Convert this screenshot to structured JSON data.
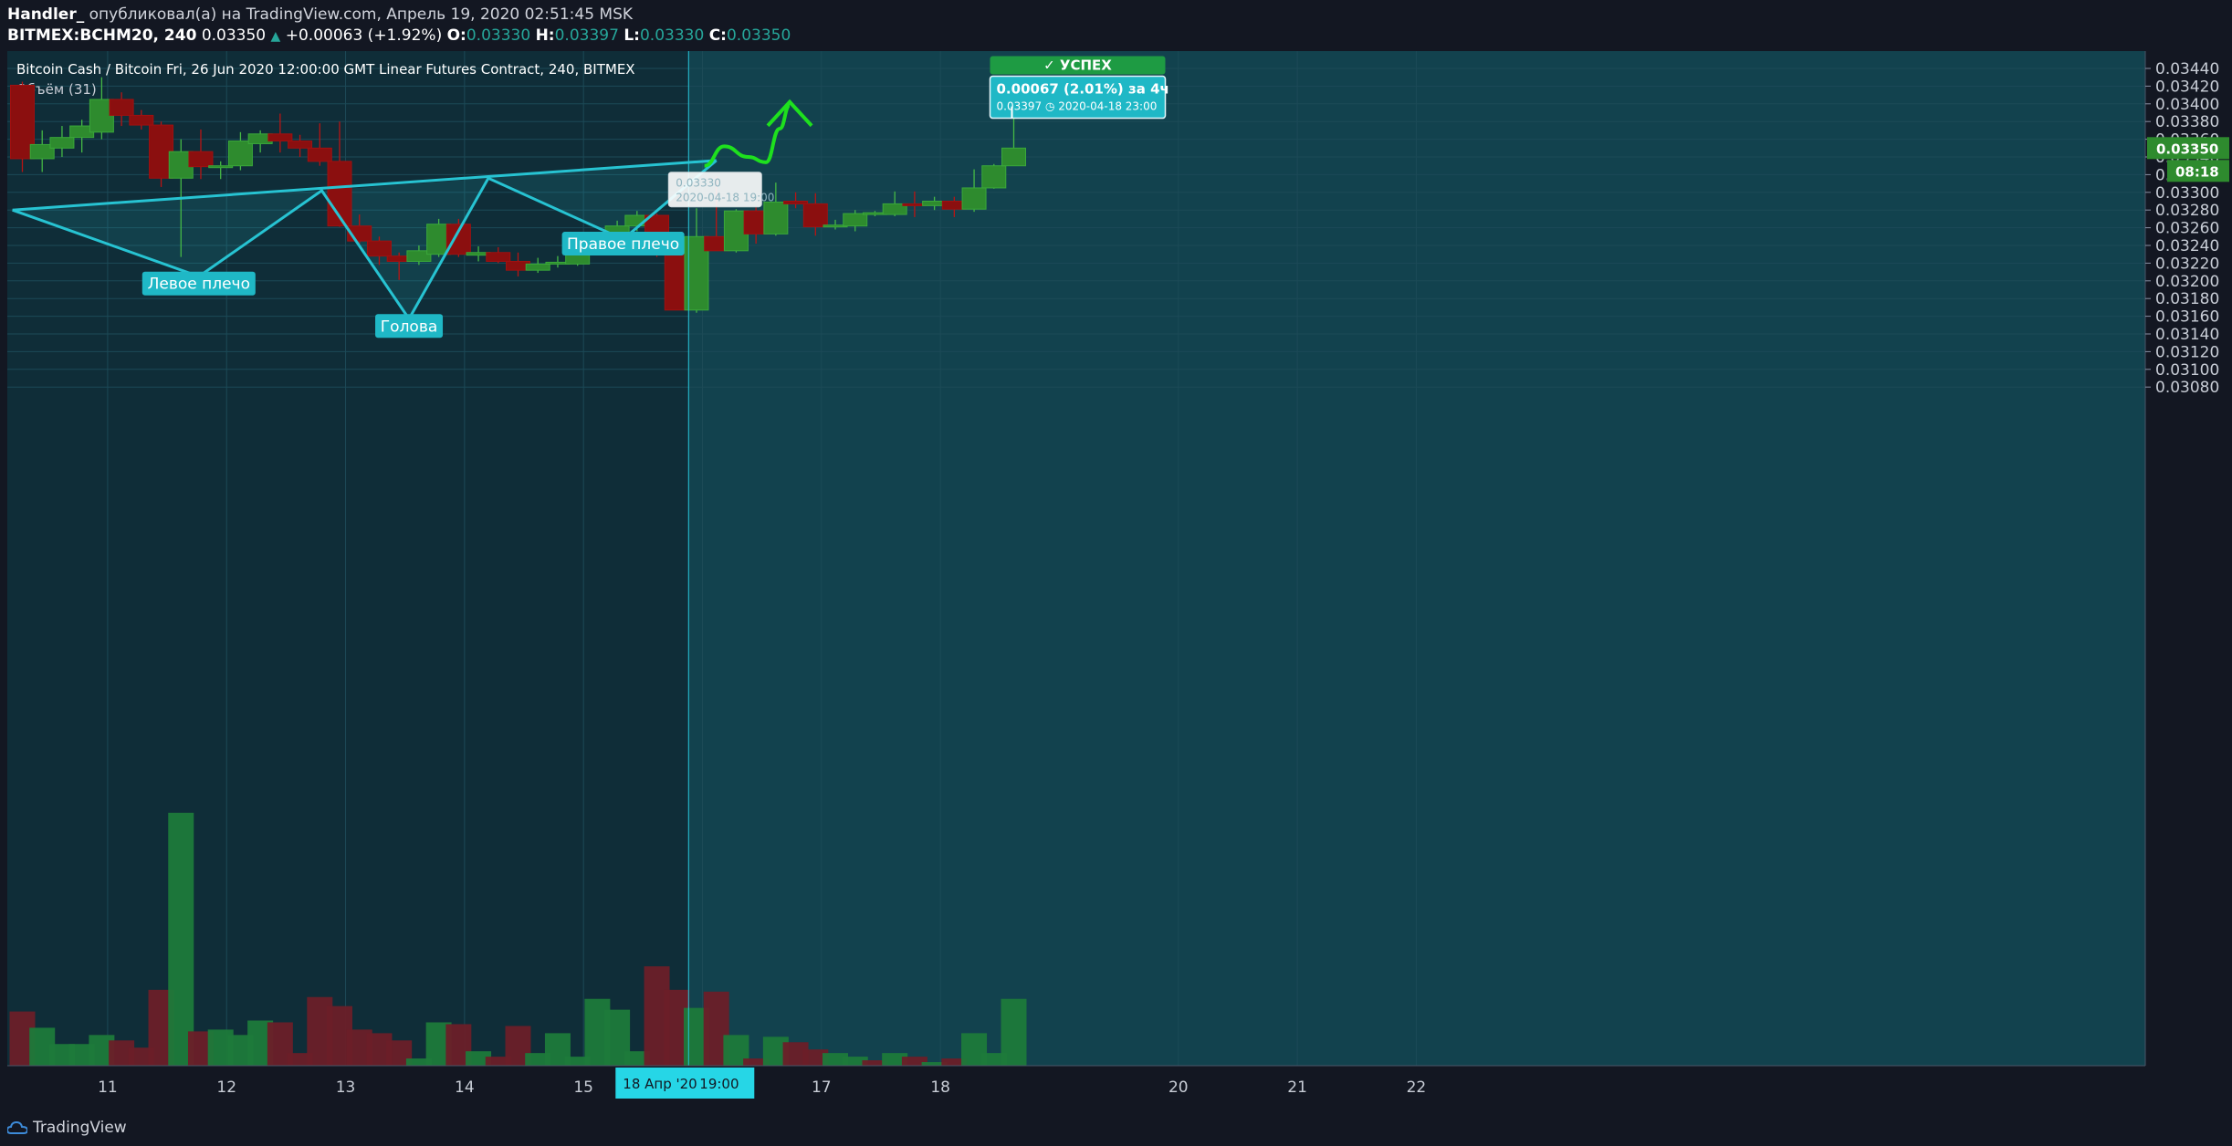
{
  "header": {
    "author": "Handler_",
    "published_text": "опубликовал(а) на TradingView.com, Апрель 19, 2020 02:51:45 MSK",
    "symbol_line": "BITMEX:BCHM20, 240",
    "last_price": "0.03350",
    "change": "+0.00063 (+1.92%)",
    "o_label": "O:",
    "o_value": "0.03330",
    "h_label": "H:",
    "h_value": "0.03397",
    "l_label": "L:",
    "l_value": "0.03330",
    "c_label": "C:",
    "c_value": "0.03350"
  },
  "chart_title": "Bitcoin Cash / Bitcoin Fri, 26 Jun 2020 12:00:00 GMT Linear Futures Contract, 240, BITMEX",
  "volume_label": "Объём (31)",
  "footer": {
    "brand": "TradingView"
  },
  "colors": {
    "background": "#0f2d38",
    "up": "#2e8b2e",
    "down": "#8b0f0f",
    "pattern": "#27c3d2",
    "forecast": "#1ee01e",
    "label_bg": "#1fb8c6",
    "success_bg": "#1e9b43"
  },
  "annotations": {
    "left_shoulder": "Левое плечо",
    "head": "Голова",
    "right_shoulder": "Правое плечо",
    "success": "✓ УСПЕХ",
    "measure_main": "0.00067 (2.01%) за 4ч",
    "measure_sub": "0.03397 ◷ 2020-04-18  23:00",
    "cursor_price": "0.03330",
    "cursor_time": "2020-04-18 19:00",
    "crosshair_date": "18 Апр '20",
    "crosshair_time": "19:00",
    "price_tag": "0.03350",
    "countdown": "08:18"
  },
  "chart_data": {
    "type": "candlestick",
    "title": "Bitcoin Cash / Bitcoin Fri, 26 Jun 2020 12:00:00 GMT Linear Futures Contract, 240, BITMEX",
    "interval": "240",
    "ylim": [
      0.0308,
      0.0345
    ],
    "y_ticks": [
      "0.03440",
      "0.03420",
      "0.03400",
      "0.03380",
      "0.03360",
      "0.03340",
      "0.03320",
      "0.03300",
      "0.03280",
      "0.03260",
      "0.03240",
      "0.03220",
      "0.03200",
      "0.03180",
      "0.03160",
      "0.03140",
      "0.03120",
      "0.03100",
      "0.03080"
    ],
    "x_ticks": [
      "11",
      "12",
      "13",
      "14",
      "15",
      "16",
      "17",
      "18",
      "20",
      "21",
      "22"
    ],
    "grid": true,
    "candles": [
      {
        "o": 0.03421,
        "h": 0.03425,
        "l": 0.03323,
        "c": 0.03338
      },
      {
        "o": 0.03338,
        "h": 0.0337,
        "l": 0.03323,
        "c": 0.03354
      },
      {
        "o": 0.0335,
        "h": 0.03375,
        "l": 0.0334,
        "c": 0.03362
      },
      {
        "o": 0.03362,
        "h": 0.03382,
        "l": 0.03345,
        "c": 0.03375
      },
      {
        "o": 0.03368,
        "h": 0.0343,
        "l": 0.0336,
        "c": 0.03405
      },
      {
        "o": 0.03405,
        "h": 0.03413,
        "l": 0.03375,
        "c": 0.03387
      },
      {
        "o": 0.03387,
        "h": 0.03393,
        "l": 0.03371,
        "c": 0.03376
      },
      {
        "o": 0.03376,
        "h": 0.0338,
        "l": 0.03306,
        "c": 0.03316
      },
      {
        "o": 0.03316,
        "h": 0.0336,
        "l": 0.03227,
        "c": 0.03346
      },
      {
        "o": 0.03346,
        "h": 0.03371,
        "l": 0.03315,
        "c": 0.03329
      },
      {
        "o": 0.03328,
        "h": 0.03335,
        "l": 0.03315,
        "c": 0.0333
      },
      {
        "o": 0.0333,
        "h": 0.03368,
        "l": 0.03325,
        "c": 0.03358
      },
      {
        "o": 0.03355,
        "h": 0.0337,
        "l": 0.03345,
        "c": 0.03366
      },
      {
        "o": 0.03366,
        "h": 0.03389,
        "l": 0.03345,
        "c": 0.03358
      },
      {
        "o": 0.03358,
        "h": 0.03365,
        "l": 0.0334,
        "c": 0.0335
      },
      {
        "o": 0.0335,
        "h": 0.03378,
        "l": 0.0333,
        "c": 0.03335
      },
      {
        "o": 0.03335,
        "h": 0.0338,
        "l": 0.03261,
        "c": 0.03262
      },
      {
        "o": 0.03262,
        "h": 0.03275,
        "l": 0.03242,
        "c": 0.03245
      },
      {
        "o": 0.03245,
        "h": 0.0325,
        "l": 0.03218,
        "c": 0.03228
      },
      {
        "o": 0.03228,
        "h": 0.03232,
        "l": 0.03201,
        "c": 0.03222
      },
      {
        "o": 0.03222,
        "h": 0.0324,
        "l": 0.03218,
        "c": 0.03234
      },
      {
        "o": 0.0323,
        "h": 0.0327,
        "l": 0.03227,
        "c": 0.03264
      },
      {
        "o": 0.03264,
        "h": 0.0327,
        "l": 0.03227,
        "c": 0.0323
      },
      {
        "o": 0.03229,
        "h": 0.03239,
        "l": 0.03222,
        "c": 0.03232
      },
      {
        "o": 0.03232,
        "h": 0.03238,
        "l": 0.0322,
        "c": 0.03222
      },
      {
        "o": 0.03222,
        "h": 0.03232,
        "l": 0.03205,
        "c": 0.03212
      },
      {
        "o": 0.03212,
        "h": 0.03226,
        "l": 0.03209,
        "c": 0.03219
      },
      {
        "o": 0.03219,
        "h": 0.03228,
        "l": 0.03215,
        "c": 0.03221
      },
      {
        "o": 0.03219,
        "h": 0.03245,
        "l": 0.03217,
        "c": 0.0324
      },
      {
        "o": 0.03239,
        "h": 0.03252,
        "l": 0.03237,
        "c": 0.03249
      },
      {
        "o": 0.03249,
        "h": 0.03268,
        "l": 0.03245,
        "c": 0.03262
      },
      {
        "o": 0.03262,
        "h": 0.03279,
        "l": 0.03256,
        "c": 0.03274
      },
      {
        "o": 0.03274,
        "h": 0.03276,
        "l": 0.03227,
        "c": 0.03234
      },
      {
        "o": 0.03234,
        "h": 0.03236,
        "l": 0.03167,
        "c": 0.03167
      },
      {
        "o": 0.03167,
        "h": 0.03282,
        "l": 0.03164,
        "c": 0.0325
      },
      {
        "o": 0.0325,
        "h": 0.03318,
        "l": 0.03234,
        "c": 0.03234
      },
      {
        "o": 0.03234,
        "h": 0.03281,
        "l": 0.03232,
        "c": 0.03279
      },
      {
        "o": 0.03279,
        "h": 0.03283,
        "l": 0.03242,
        "c": 0.03253
      },
      {
        "o": 0.03253,
        "h": 0.03311,
        "l": 0.03251,
        "c": 0.03289
      },
      {
        "o": 0.0329,
        "h": 0.033,
        "l": 0.03282,
        "c": 0.03287
      },
      {
        "o": 0.03287,
        "h": 0.03299,
        "l": 0.03251,
        "c": 0.03261
      },
      {
        "o": 0.03261,
        "h": 0.03269,
        "l": 0.03258,
        "c": 0.03263
      },
      {
        "o": 0.03262,
        "h": 0.0328,
        "l": 0.03256,
        "c": 0.03276
      },
      {
        "o": 0.03275,
        "h": 0.03279,
        "l": 0.03273,
        "c": 0.03277
      },
      {
        "o": 0.03275,
        "h": 0.03301,
        "l": 0.03273,
        "c": 0.03287
      },
      {
        "o": 0.03287,
        "h": 0.03301,
        "l": 0.03272,
        "c": 0.03285
      },
      {
        "o": 0.03285,
        "h": 0.03295,
        "l": 0.0328,
        "c": 0.0329
      },
      {
        "o": 0.0329,
        "h": 0.03295,
        "l": 0.03272,
        "c": 0.03281
      },
      {
        "o": 0.03281,
        "h": 0.03326,
        "l": 0.03278,
        "c": 0.03305
      },
      {
        "o": 0.03305,
        "h": 0.03332,
        "l": 0.03304,
        "c": 0.0333
      },
      {
        "o": 0.0333,
        "h": 0.03397,
        "l": 0.0333,
        "c": 0.0335
      }
    ],
    "volume": [
      {
        "v": 0.3,
        "up": false
      },
      {
        "v": 0.21,
        "up": true
      },
      {
        "v": 0.12,
        "up": true
      },
      {
        "v": 0.12,
        "up": true
      },
      {
        "v": 0.17,
        "up": true
      },
      {
        "v": 0.14,
        "up": false
      },
      {
        "v": 0.1,
        "up": false
      },
      {
        "v": 0.42,
        "up": false
      },
      {
        "v": 1.4,
        "up": true
      },
      {
        "v": 0.19,
        "up": false
      },
      {
        "v": 0.2,
        "up": true
      },
      {
        "v": 0.17,
        "up": true
      },
      {
        "v": 0.25,
        "up": true
      },
      {
        "v": 0.24,
        "up": false
      },
      {
        "v": 0.07,
        "up": false
      },
      {
        "v": 0.38,
        "up": false
      },
      {
        "v": 0.33,
        "up": false
      },
      {
        "v": 0.2,
        "up": false
      },
      {
        "v": 0.18,
        "up": false
      },
      {
        "v": 0.14,
        "up": false
      },
      {
        "v": 0.04,
        "up": true
      },
      {
        "v": 0.24,
        "up": true
      },
      {
        "v": 0.23,
        "up": false
      },
      {
        "v": 0.08,
        "up": true
      },
      {
        "v": 0.05,
        "up": false
      },
      {
        "v": 0.22,
        "up": false
      },
      {
        "v": 0.07,
        "up": true
      },
      {
        "v": 0.18,
        "up": true
      },
      {
        "v": 0.05,
        "up": true
      },
      {
        "v": 0.37,
        "up": true
      },
      {
        "v": 0.31,
        "up": true
      },
      {
        "v": 0.08,
        "up": true
      },
      {
        "v": 0.55,
        "up": false
      },
      {
        "v": 0.42,
        "up": false
      },
      {
        "v": 0.32,
        "up": true
      },
      {
        "v": 0.41,
        "up": false
      },
      {
        "v": 0.17,
        "up": true
      },
      {
        "v": 0.04,
        "up": false
      },
      {
        "v": 0.16,
        "up": true
      },
      {
        "v": 0.13,
        "up": false
      },
      {
        "v": 0.09,
        "up": false
      },
      {
        "v": 0.07,
        "up": true
      },
      {
        "v": 0.05,
        "up": true
      },
      {
        "v": 0.03,
        "up": false
      },
      {
        "v": 0.07,
        "up": true
      },
      {
        "v": 0.05,
        "up": false
      },
      {
        "v": 0.02,
        "up": true
      },
      {
        "v": 0.04,
        "up": false
      },
      {
        "v": 0.18,
        "up": true
      },
      {
        "v": 0.07,
        "up": true
      },
      {
        "v": 0.37,
        "up": true
      }
    ],
    "pattern": {
      "name": "inverse head and shoulders",
      "points": [
        {
          "i": -0.5,
          "p": 0.0328
        },
        {
          "i": 8.9,
          "p": 0.03205
        },
        {
          "i": 15.1,
          "p": 0.03302
        },
        {
          "i": 19.5,
          "p": 0.03157
        },
        {
          "i": 23.5,
          "p": 0.03316
        },
        {
          "i": 30.3,
          "p": 0.03247
        },
        {
          "i": 35.0,
          "p": 0.03336
        }
      ],
      "neckline": [
        {
          "i": -0.5,
          "p": 0.0328
        },
        {
          "i": 35.0,
          "p": 0.03336
        }
      ],
      "labels": [
        {
          "key": "left_shoulder",
          "i": 8.9,
          "p": 0.03197
        },
        {
          "key": "head",
          "i": 19.5,
          "p": 0.03149
        },
        {
          "key": "right_shoulder",
          "i": 30.3,
          "p": 0.03242
        }
      ]
    },
    "forecast_path": [
      {
        "i": 34.4,
        "p": 0.0333
      },
      {
        "i": 35.4,
        "p": 0.03352
      },
      {
        "i": 36.6,
        "p": 0.0334
      },
      {
        "i": 37.5,
        "p": 0.03334
      },
      {
        "i": 38.2,
        "p": 0.03372
      },
      {
        "i": 38.7,
        "p": 0.03398
      }
    ],
    "crosshair_index": 33.6
  }
}
